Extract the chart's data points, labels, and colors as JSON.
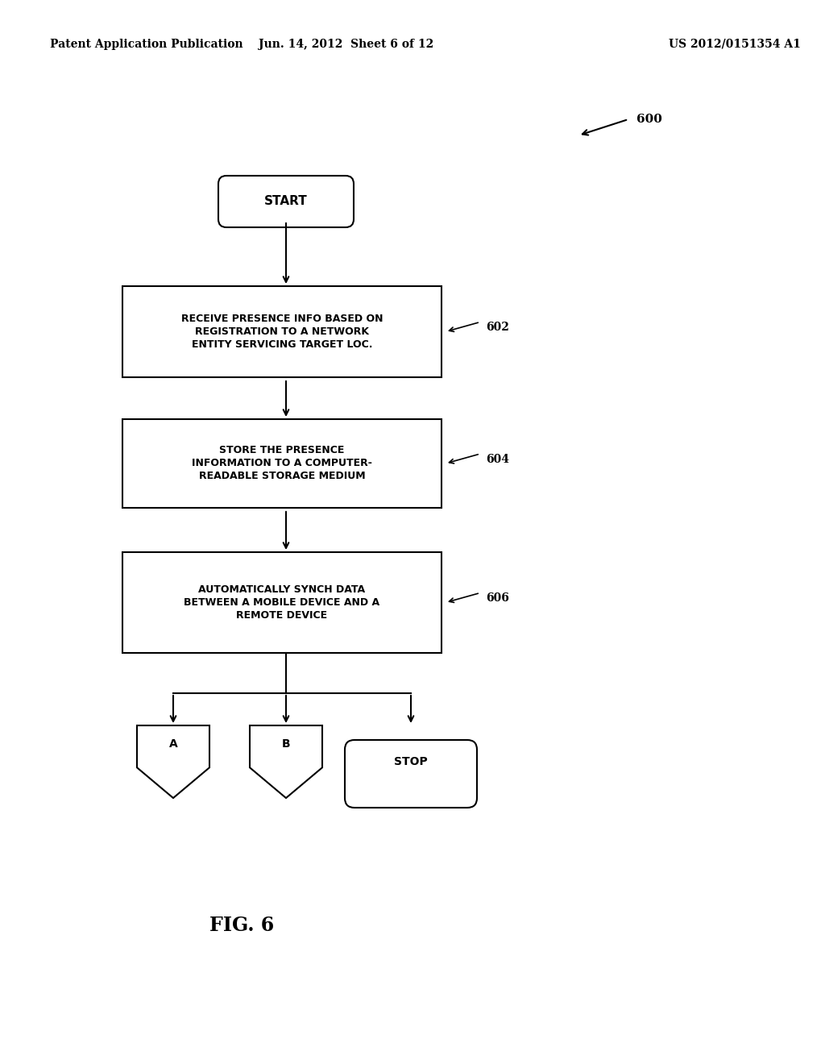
{
  "bg_color": "#ffffff",
  "header_left": "Patent Application Publication",
  "header_center": "Jun. 14, 2012  Sheet 6 of 12",
  "header_right": "US 2012/0151354 A1",
  "fig_label": "FIG. 6",
  "ref_600": "600",
  "start_label": "START",
  "box1_line1": "RECEIVE PRESENCE INFO BASED ON",
  "box1_line2": "REGISTRATION TO A NETWORK",
  "box1_line3": "ENTITY SERVICING TARGET LOC.",
  "box1_ref": "602",
  "box2_line1": "STORE THE PRESENCE",
  "box2_line2": "INFORMATION TO A COMPUTER-",
  "box2_line3": "READABLE STORAGE MEDIUM",
  "box2_ref": "604",
  "box3_line1": "AUTOMATICALLY SYNCH DATA",
  "box3_line2": "BETWEEN A MOBILE DEVICE AND A",
  "box3_line3": "REMOTE DEVICE",
  "box3_ref": "606",
  "term_A": "A",
  "term_B": "B",
  "term_stop": "STOP",
  "line_color": "#000000",
  "text_color": "#000000",
  "font_size_header": 10,
  "font_size_box": 9,
  "font_size_ref": 10,
  "font_size_fig": 17,
  "font_size_start": 11,
  "font_size_term": 10
}
